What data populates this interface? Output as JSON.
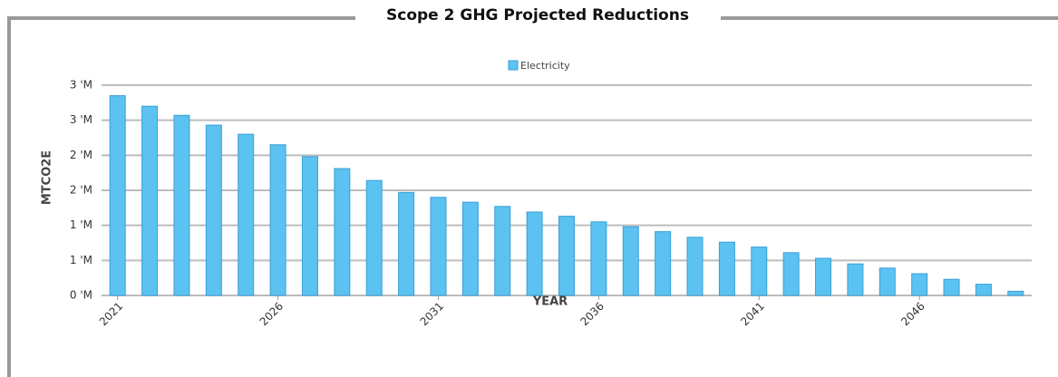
{
  "chart_data": {
    "type": "bar",
    "title": "Scope 2 GHG Projected Reductions",
    "x_label": "YEAR",
    "y_label": "MTCO2E",
    "categories": [
      "2021",
      null,
      null,
      null,
      null,
      "2026",
      null,
      null,
      null,
      null,
      "2031",
      null,
      null,
      null,
      null,
      "2036",
      null,
      null,
      null,
      null,
      "2041",
      null,
      null,
      null,
      null,
      "2046",
      null,
      null,
      null
    ],
    "series": [
      {
        "name": "Electricity",
        "color": "#5bc2f2",
        "values": [
          2.85,
          2.7,
          2.57,
          2.43,
          2.3,
          2.15,
          1.98,
          1.81,
          1.64,
          1.47,
          1.4,
          1.33,
          1.27,
          1.19,
          1.13,
          1.05,
          0.98,
          0.91,
          0.83,
          0.76,
          0.69,
          0.61,
          0.53,
          0.45,
          0.39,
          0.31,
          0.23,
          0.16,
          0.06
        ]
      }
    ],
    "ylim": [
      0,
      3
    ],
    "yticks": [
      {
        "value": 0,
        "label": "0 'M"
      },
      {
        "value": 0.5,
        "label": "1 'M"
      },
      {
        "value": 1,
        "label": "1 'M"
      },
      {
        "value": 1.5,
        "label": "2 'M"
      },
      {
        "value": 2,
        "label": "2 'M"
      },
      {
        "value": 2.5,
        "label": "3 'M"
      },
      {
        "value": 3,
        "label": "3 'M"
      }
    ],
    "grid": true,
    "legend": "top"
  }
}
